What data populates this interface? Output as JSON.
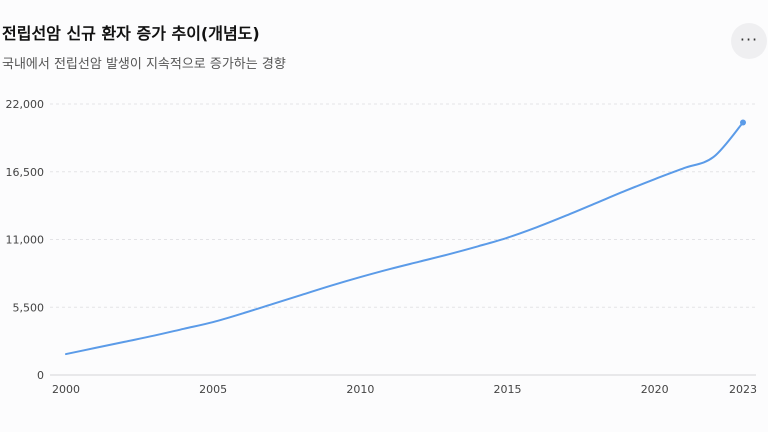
{
  "header": {
    "title": "전립선암 신규 환자 증가 추이(개념도)",
    "subtitle": "국내에서 전립선암 발생이 지속적으로 증가하는 경향"
  },
  "menu": {
    "icon": "more-horizontal-icon",
    "label": "···"
  },
  "colors": {
    "line": "#5b9be8",
    "grid": "#e3e3e6",
    "axis": "#d5d5d8"
  },
  "chart_data": {
    "type": "line",
    "title": "전립선암 신규 환자 증가 추이(개념도)",
    "subtitle": "국내에서 전립선암 발생이 지속적으로 증가하는 경향",
    "xlabel": "",
    "ylabel": "",
    "x_ticks": [
      "2000",
      "2005",
      "2010",
      "2015",
      "2020",
      "2023"
    ],
    "y_ticks": [
      "0",
      "5,500",
      "11,000",
      "16,500",
      "22,000"
    ],
    "xlim": [
      2000,
      2023
    ],
    "ylim": [
      0,
      22000
    ],
    "grid": true,
    "legend": "none",
    "series": [
      {
        "x": [
          2000,
          2001,
          2002,
          2003,
          2004,
          2005,
          2006,
          2007,
          2008,
          2009,
          2010,
          2011,
          2012,
          2013,
          2014,
          2015,
          2016,
          2017,
          2018,
          2019,
          2020,
          2021,
          2022,
          2023
        ],
        "y": [
          1700,
          2200,
          2700,
          3200,
          3750,
          4300,
          5000,
          5750,
          6500,
          7250,
          7950,
          8600,
          9200,
          9800,
          10450,
          11150,
          12000,
          12950,
          13950,
          14950,
          15900,
          16800,
          17700,
          20500
        ],
        "end_marker": true
      }
    ]
  }
}
